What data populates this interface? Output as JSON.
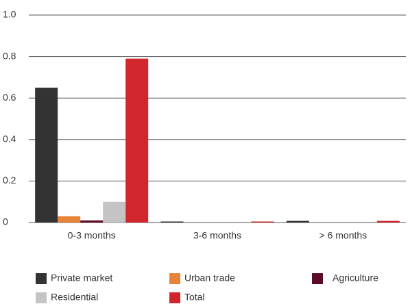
{
  "chart_data": {
    "type": "bar",
    "categories": [
      "0-3 months",
      "3-6 months",
      "> 6 months"
    ],
    "series": [
      {
        "name": "Private market",
        "color": "#333333",
        "values": [
          0.65,
          0.005,
          0.008
        ]
      },
      {
        "name": "Urban trade",
        "color": "#e8833a",
        "values": [
          0.03,
          0,
          0
        ]
      },
      {
        "name": "Agriculture",
        "color": "#5c0a26",
        "values": [
          0.01,
          0,
          0
        ]
      },
      {
        "name": "Residential",
        "color": "#c4c4c4",
        "values": [
          0.1,
          0,
          0
        ]
      },
      {
        "name": "Total",
        "color": "#d0262c",
        "values": [
          0.79,
          0.005,
          0.008
        ]
      }
    ],
    "ylim": [
      0,
      1
    ],
    "yticks": [
      0,
      0.2,
      0.4,
      0.6,
      0.8,
      {
        "value": 1,
        "label": "1.0"
      }
    ],
    "grid": true
  }
}
